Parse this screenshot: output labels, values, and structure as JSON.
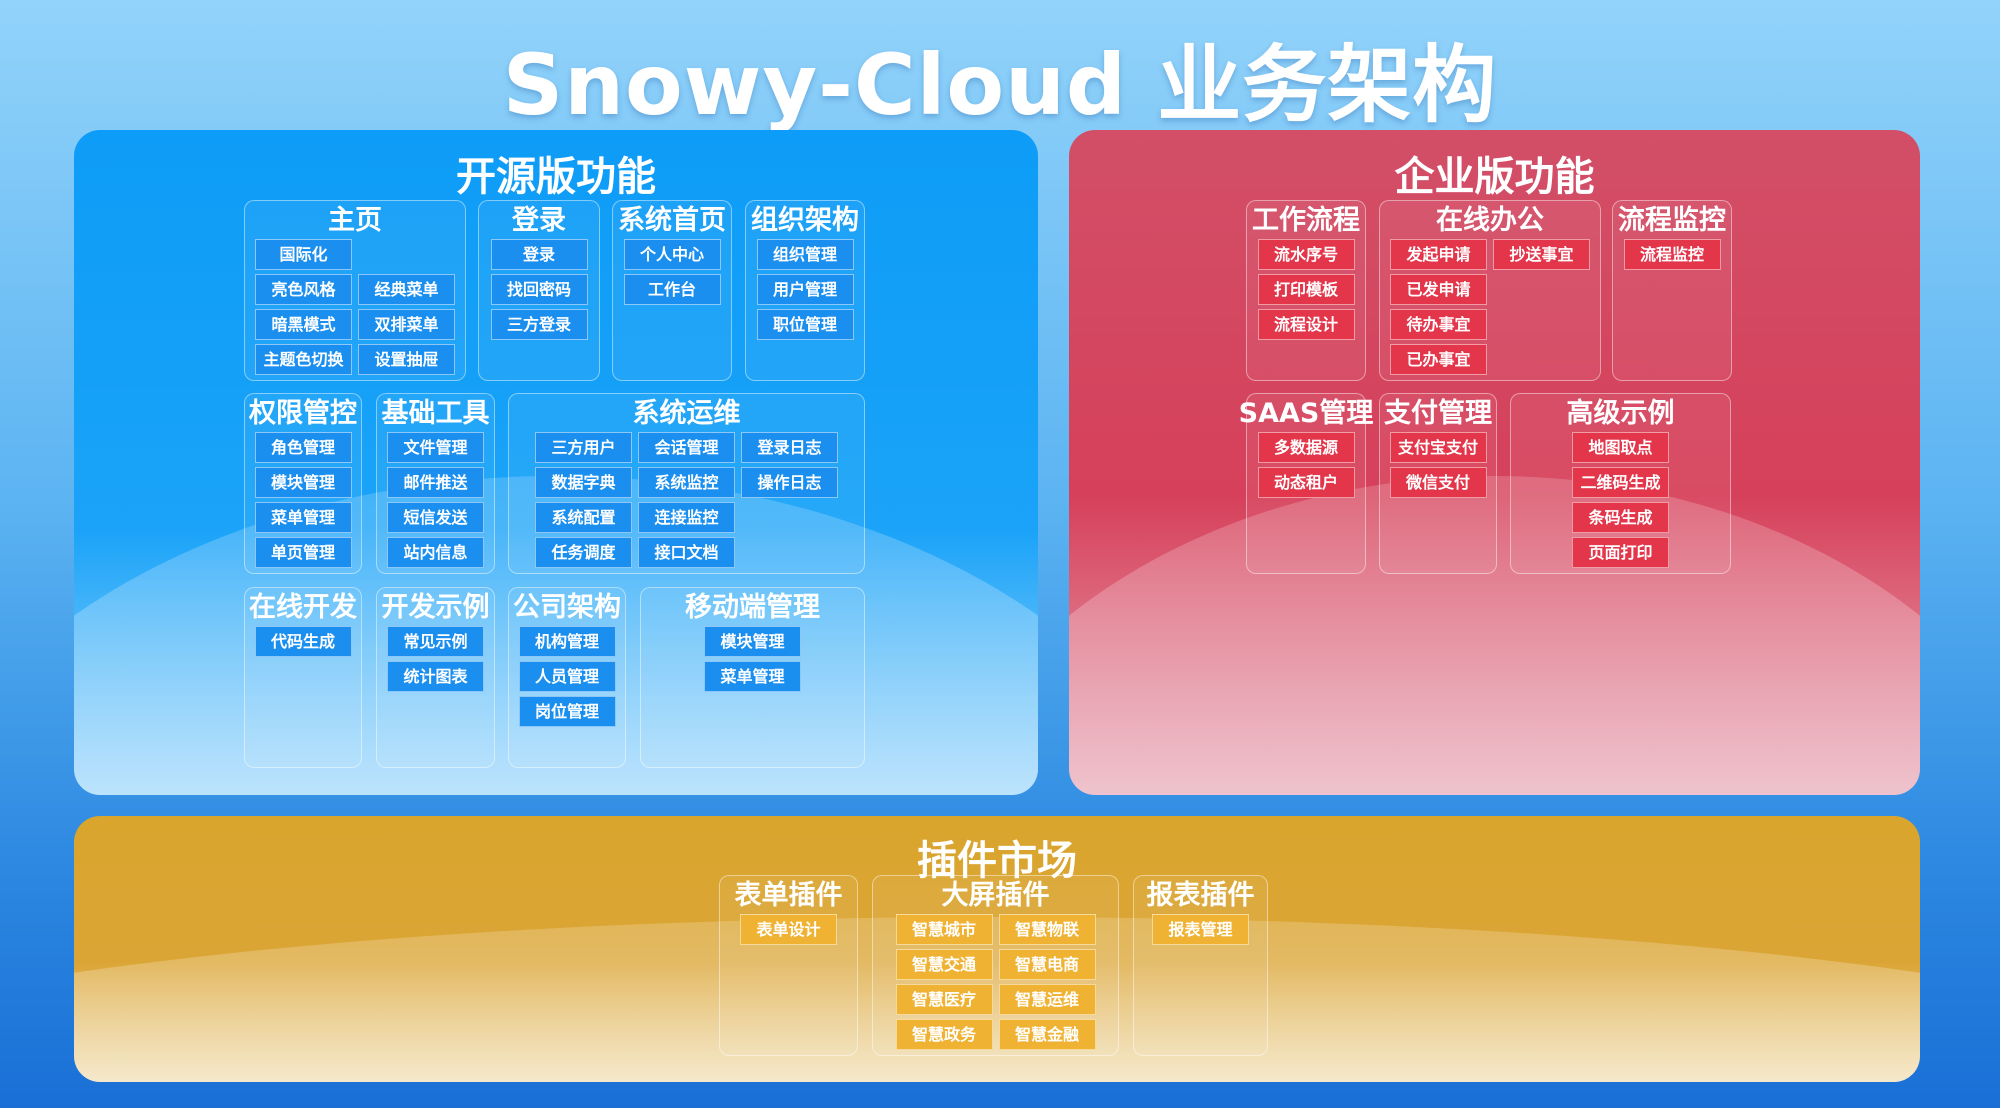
{
  "title": "Snowy-Cloud 业务架构",
  "colors": {
    "open": "#1aa3f8",
    "enterprise": "#d6405a",
    "plugins": "#dba536"
  },
  "open": {
    "title": "开源版功能",
    "groups": [
      {
        "id": "g-home",
        "title": "主页",
        "columns": [
          [
            "国际化",
            "亮色风格",
            "暗黑模式",
            "主题色切换"
          ],
          [
            "经典菜单",
            "双排菜单",
            "设置抽屉"
          ]
        ]
      },
      {
        "id": "g-login",
        "title": "登录",
        "columns": [
          [
            "登录",
            "找回密码",
            "三方登录"
          ]
        ]
      },
      {
        "id": "g-index",
        "title": "系统首页",
        "columns": [
          [
            "个人中心",
            "工作台"
          ]
        ]
      },
      {
        "id": "g-org",
        "title": "组织架构",
        "columns": [
          [
            "组织管理",
            "用户管理",
            "职位管理"
          ]
        ]
      },
      {
        "id": "g-auth",
        "title": "权限管控",
        "columns": [
          [
            "角色管理",
            "模块管理",
            "菜单管理",
            "单页管理"
          ]
        ]
      },
      {
        "id": "g-tools",
        "title": "基础工具",
        "columns": [
          [
            "文件管理",
            "邮件推送",
            "短信发送",
            "站内信息"
          ]
        ]
      },
      {
        "id": "g-ops",
        "title": "系统运维",
        "columns": [
          [
            "三方用户",
            "数据字典",
            "系统配置",
            "任务调度"
          ],
          [
            "会话管理",
            "系统监控",
            "连接监控",
            "接口文档"
          ],
          [
            "登录日志",
            "操作日志"
          ]
        ]
      },
      {
        "id": "g-dev",
        "title": "在线开发",
        "columns": [
          [
            "代码生成"
          ]
        ]
      },
      {
        "id": "g-demo",
        "title": "开发示例",
        "columns": [
          [
            "常见示例",
            "统计图表"
          ]
        ]
      },
      {
        "id": "g-company",
        "title": "公司架构",
        "columns": [
          [
            "机构管理",
            "人员管理",
            "岗位管理"
          ]
        ]
      },
      {
        "id": "g-mobile",
        "title": "移动端管理",
        "columns": [
          [
            "模块管理",
            "菜单管理"
          ]
        ]
      }
    ]
  },
  "enterprise": {
    "title": "企业版功能",
    "groups": [
      {
        "id": "g-flow",
        "title": "工作流程",
        "columns": [
          [
            "流水序号",
            "打印模板",
            "流程设计"
          ]
        ]
      },
      {
        "id": "g-office",
        "title": "在线办公",
        "columns": [
          [
            "发起申请",
            "已发申请",
            "待办事宜",
            "已办事宜"
          ],
          [
            "抄送事宜"
          ]
        ]
      },
      {
        "id": "g-flowmon",
        "title": "流程监控",
        "columns": [
          [
            "流程监控"
          ]
        ]
      },
      {
        "id": "g-saas",
        "title": "SAAS管理",
        "columns": [
          [
            "多数据源",
            "动态租户"
          ]
        ]
      },
      {
        "id": "g-pay",
        "title": "支付管理",
        "columns": [
          [
            "支付宝支付",
            "微信支付"
          ]
        ]
      },
      {
        "id": "g-adv",
        "title": "高级示例",
        "columns": [
          [
            "地图取点",
            "二维码生成",
            "条码生成",
            "页面打印"
          ]
        ]
      }
    ]
  },
  "plugins": {
    "title": "插件市场",
    "groups": [
      {
        "id": "g-form",
        "title": "表单插件",
        "columns": [
          [
            "表单设计"
          ]
        ]
      },
      {
        "id": "g-screen",
        "title": "大屏插件",
        "columns": [
          [
            "智慧城市",
            "智慧交通",
            "智慧医疗",
            "智慧政务"
          ],
          [
            "智慧物联",
            "智慧电商",
            "智慧运维",
            "智慧金融"
          ]
        ]
      },
      {
        "id": "g-report",
        "title": "报表插件",
        "columns": [
          [
            "报表管理"
          ]
        ]
      }
    ]
  }
}
